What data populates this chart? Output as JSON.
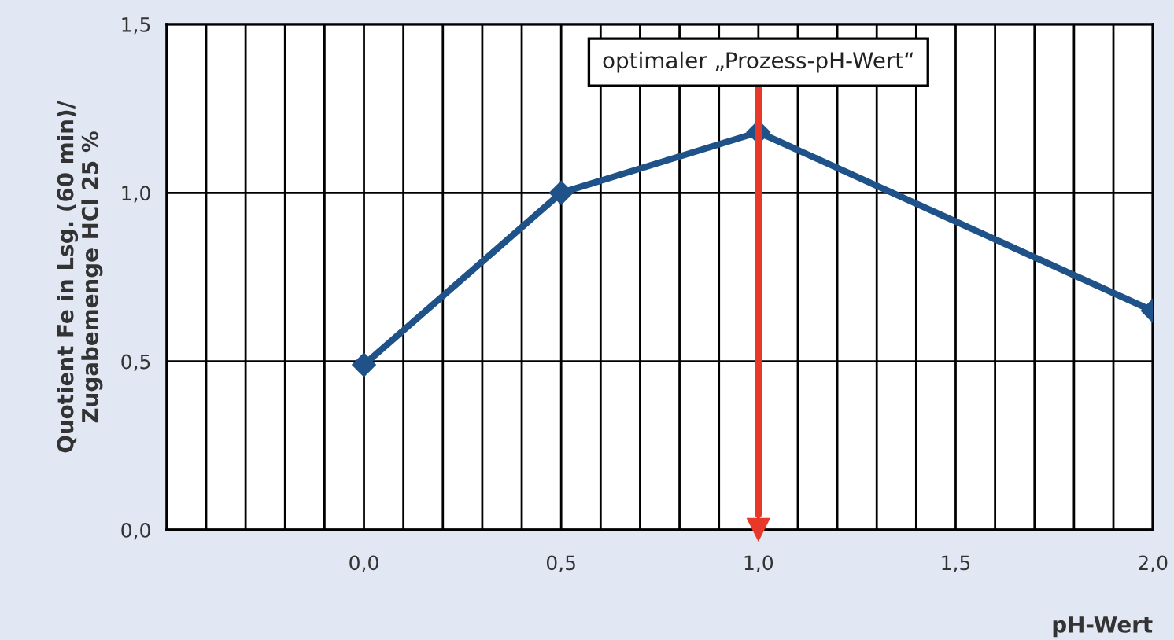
{
  "chart_data": {
    "type": "line",
    "xlabel": "pH-Wert",
    "ylabel": "Quotient Fe in Lsg. (60 min)/\nZugabemenge HCl 25 %",
    "x": [
      0.0,
      0.5,
      1.0,
      2.0
    ],
    "series": [
      {
        "color": "#1f5288",
        "values": [
          0.49,
          1.0,
          1.18,
          0.65
        ]
      }
    ],
    "xlim": [
      -0.5,
      2.0
    ],
    "xticks": [
      {
        "value": -0.5,
        "label": null
      },
      {
        "value": -0.4,
        "label": null
      },
      {
        "value": -0.3,
        "label": null
      },
      {
        "value": -0.2,
        "label": null
      },
      {
        "value": -0.1,
        "label": null
      },
      {
        "value": 0.0,
        "label": "0,0"
      },
      {
        "value": 0.1,
        "label": null
      },
      {
        "value": 0.2,
        "label": null
      },
      {
        "value": 0.3,
        "label": null
      },
      {
        "value": 0.4,
        "label": null
      },
      {
        "value": 0.5,
        "label": "0,5"
      },
      {
        "value": 0.6,
        "label": null
      },
      {
        "value": 0.7,
        "label": null
      },
      {
        "value": 0.8,
        "label": null
      },
      {
        "value": 0.9,
        "label": null
      },
      {
        "value": 1.0,
        "label": "1,0"
      },
      {
        "value": 1.1,
        "label": null
      },
      {
        "value": 1.2,
        "label": null
      },
      {
        "value": 1.3,
        "label": null
      },
      {
        "value": 1.4,
        "label": null
      },
      {
        "value": 1.5,
        "label": "1,5"
      },
      {
        "value": 1.6,
        "label": null
      },
      {
        "value": 1.7,
        "label": null
      },
      {
        "value": 1.8,
        "label": null
      },
      {
        "value": 1.9,
        "label": null
      },
      {
        "value": 2.0,
        "label": "2,0"
      }
    ],
    "ylim": [
      0.0,
      1.5
    ],
    "yticks": [
      {
        "value": 0.0,
        "label": "0,0"
      },
      {
        "value": 0.5,
        "label": "0,5"
      },
      {
        "value": 1.0,
        "label": "1,0"
      },
      {
        "value": 1.5,
        "label": "1,5"
      }
    ],
    "grid": true,
    "marker": "diamond",
    "line_style": "solid",
    "ref_lines": [
      {
        "axis": "x",
        "value": 1.0,
        "label": "optimaler „Prozess-pH-Wert“",
        "color": "#e8382a"
      }
    ]
  }
}
